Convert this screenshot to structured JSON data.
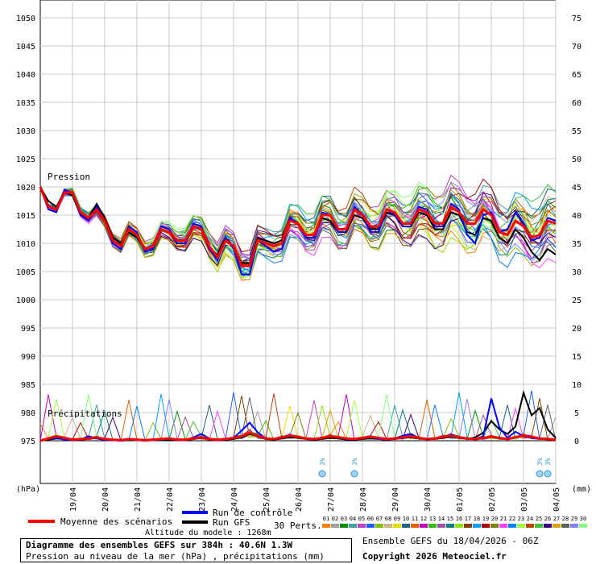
{
  "chart_data": {
    "type": "line",
    "title": "Diagramme des ensembles GEFS sur 384h : 40.6N 1.3W",
    "subtitle": "Pression au niveau de la mer (hPa) , précipitations (mm)",
    "left_axis": {
      "unit": "(hPa)",
      "ticks": [
        975,
        980,
        985,
        990,
        995,
        1000,
        1005,
        1010,
        1015,
        1020,
        1025,
        1030,
        1035,
        1040,
        1045,
        1050
      ]
    },
    "right_axis": {
      "unit": "(mm)",
      "ticks": [
        0,
        5,
        10,
        15,
        20,
        25,
        30,
        35,
        40,
        45,
        50,
        55,
        60,
        65,
        70,
        75
      ]
    },
    "x_ticks": [
      "19/04",
      "20/04",
      "21/04",
      "22/04",
      "23/04",
      "24/04",
      "25/04",
      "26/04",
      "27/04",
      "28/04",
      "29/04",
      "30/04",
      "01/05",
      "02/05",
      "03/05",
      "04/05"
    ],
    "panel_labels": {
      "pressure": "Pression",
      "precip": "Précipitations"
    },
    "grid": true,
    "x_hours": [
      0,
      6,
      12,
      18,
      24,
      30,
      36,
      42,
      48,
      54,
      60,
      66,
      72,
      78,
      84,
      90,
      96,
      102,
      108,
      114,
      120,
      126,
      132,
      138,
      144,
      150,
      156,
      162,
      168,
      174,
      180,
      186,
      192,
      198,
      204,
      210,
      216,
      222,
      228,
      234,
      240,
      246,
      252,
      258,
      264,
      270,
      276,
      282,
      288,
      294,
      300,
      306,
      312,
      318,
      324,
      330,
      336,
      342,
      348,
      354,
      360,
      366,
      372,
      378,
      384
    ],
    "series": [
      {
        "name": "Moyenne des scénarios",
        "color": "#ff0000",
        "pressure": [
          1020,
          1016.5,
          1016,
          1019,
          1019,
          1015.5,
          1014.5,
          1016,
          1014,
          1010.5,
          1009.5,
          1012.5,
          1011.5,
          1009,
          1009.5,
          1012.5,
          1012,
          1010.5,
          1010.5,
          1013,
          1012.5,
          1009.5,
          1007.5,
          1010.5,
          1009.5,
          1006,
          1006,
          1010.5,
          1010,
          1009.5,
          1010,
          1014,
          1013.5,
          1011.5,
          1011.5,
          1015,
          1015,
          1012.5,
          1012.5,
          1016,
          1015,
          1013,
          1013,
          1016,
          1015.5,
          1013.5,
          1013.5,
          1016,
          1015.5,
          1013.5,
          1013.5,
          1016.5,
          1015.5,
          1013.5,
          1013.5,
          1016,
          1015,
          1012,
          1011.5,
          1014,
          1013,
          1011,
          1011.5,
          1014,
          1013.5
        ],
        "precip": [
          0,
          0.4,
          0.8,
          0.5,
          0.2,
          0.3,
          0.4,
          0.6,
          0.3,
          0.2,
          0.1,
          0.3,
          0.2,
          0.1,
          0.2,
          0.3,
          0.4,
          0.2,
          0.2,
          0.4,
          0.6,
          0.3,
          0.2,
          0.3,
          0.5,
          0.8,
          1.4,
          0.9,
          0.4,
          0.3,
          0.6,
          0.9,
          0.7,
          0.4,
          0.3,
          0.5,
          0.8,
          0.6,
          0.4,
          0.3,
          0.5,
          0.7,
          0.5,
          0.3,
          0.4,
          0.6,
          0.8,
          0.5,
          0.3,
          0.4,
          0.7,
          0.9,
          0.6,
          0.4,
          0.3,
          0.5,
          0.7,
          0.5,
          0.3,
          0.6,
          0.9,
          0.7,
          0.4,
          0.3,
          0.2
        ]
      },
      {
        "name": "Run de contrôle",
        "color": "#0000ff",
        "pressure": [
          1020,
          1016,
          1015.5,
          1019.5,
          1019,
          1015,
          1014,
          1016.5,
          1014,
          1010,
          1009,
          1013,
          1012,
          1008.5,
          1009,
          1013,
          1012.5,
          1010,
          1010,
          1013.5,
          1013,
          1009,
          1007,
          1011,
          1009,
          1004.5,
          1004.5,
          1010.5,
          1009.5,
          1008.5,
          1009,
          1014.5,
          1013.5,
          1011,
          1011,
          1015.5,
          1015,
          1012,
          1012,
          1016.5,
          1015,
          1012,
          1012,
          1016,
          1015,
          1013,
          1013,
          1016.5,
          1016,
          1013,
          1013,
          1017,
          1016,
          1011.5,
          1010,
          1015,
          1015.5,
          1012,
          1012.5,
          1015.5,
          1013.5,
          1010.5,
          1011,
          1014.5,
          1014
        ],
        "precip": [
          0,
          0.3,
          0.5,
          0.2,
          0.1,
          0.2,
          0.8,
          0.4,
          0.1,
          0.1,
          0,
          0.2,
          0.1,
          0,
          0.1,
          0.2,
          0.3,
          0.1,
          0.1,
          0.6,
          1.2,
          0.4,
          0.1,
          0.2,
          0.5,
          1.8,
          3.2,
          1.5,
          0.4,
          0.3,
          0.7,
          0.9,
          0.6,
          0.4,
          0.2,
          0.5,
          0.8,
          0.6,
          0.2,
          0.3,
          0.4,
          0.6,
          0.3,
          0.2,
          0.4,
          0.9,
          1.2,
          0.5,
          0.3,
          0.4,
          0.6,
          1.1,
          0.7,
          0.4,
          0.3,
          0.8,
          7.5,
          2.4,
          0.5,
          1.6,
          0.8,
          0.5,
          0.3,
          0.4,
          0.2
        ]
      },
      {
        "name": "Run GFS",
        "color": "#000000",
        "pressure": [
          1020,
          1017.5,
          1016.5,
          1019,
          1018.5,
          1015,
          1014.5,
          1017,
          1014.5,
          1011,
          1010,
          1012,
          1011,
          1009,
          1009.5,
          1012.5,
          1012,
          1010,
          1010,
          1013,
          1012.5,
          1009,
          1008,
          1011,
          1009.5,
          1006.5,
          1006.5,
          1011,
          1010.5,
          1010,
          1010.5,
          1014,
          1013.5,
          1011.5,
          1011.5,
          1014.5,
          1014,
          1012,
          1012,
          1015,
          1014.5,
          1012.5,
          1012.5,
          1015.5,
          1015,
          1013,
          1013,
          1015.5,
          1015,
          1012.5,
          1012.5,
          1015.5,
          1015,
          1012,
          1011.5,
          1014.5,
          1014,
          1011,
          1010,
          1012.5,
          1011,
          1008.5,
          1007,
          1009,
          1008
        ],
        "precip": [
          0,
          0.2,
          0.4,
          0.3,
          0.1,
          0.2,
          0.3,
          0.5,
          0.2,
          0.1,
          0,
          0.1,
          0.1,
          0,
          0.1,
          0.2,
          0.2,
          0.1,
          0.1,
          0.3,
          0.5,
          0.2,
          0.1,
          0.2,
          0.3,
          0.6,
          1.2,
          0.8,
          0.3,
          0.2,
          0.4,
          0.6,
          0.5,
          0.3,
          0.2,
          0.3,
          0.5,
          0.4,
          0.2,
          0.2,
          0.3,
          0.4,
          0.3,
          0.2,
          0.3,
          0.5,
          0.6,
          0.4,
          0.3,
          0.3,
          0.5,
          0.7,
          0.5,
          0.3,
          0.6,
          1.4,
          3.5,
          2.0,
          1.2,
          2.5,
          8.5,
          4.5,
          5.8,
          2.0,
          0.5
        ]
      }
    ],
    "perturbations": {
      "count": 30,
      "colors": [
        "#ff8000",
        "#a0a0a0",
        "#009000",
        "#40a0a0",
        "#c040c0",
        "#2060ff",
        "#80c000",
        "#d0b090",
        "#e0e000",
        "#206080",
        "#e06000",
        "#c000c0",
        "#30c000",
        "#a050a0",
        "#008080",
        "#90e000",
        "#804000",
        "#00a0ff",
        "#b00000",
        "#808000",
        "#ff40ff",
        "#0080ff",
        "#a0ff40",
        "#c04000",
        "#40c040",
        "#400080",
        "#e0a000",
        "#606060",
        "#8080ff",
        "#80ff80"
      ]
    },
    "snow_symbols": [
      {
        "hour": 210,
        "label": "3%"
      },
      {
        "hour": 234,
        "label": "3%"
      },
      {
        "hour": 372,
        "label": "3%"
      },
      {
        "hour": 378,
        "label": "3%"
      }
    ]
  },
  "legend": {
    "mean_label": "Moyenne des scénarios",
    "control_label": "Run de contrôle",
    "gfs_label": "Run GFS",
    "perts_label": "30 Perts.",
    "pert_numbers": [
      "01",
      "02",
      "03",
      "04",
      "05",
      "06",
      "07",
      "08",
      "09",
      "10",
      "11",
      "12",
      "13",
      "14",
      "15",
      "16",
      "17",
      "18",
      "19",
      "20",
      "21",
      "22",
      "23",
      "24",
      "25",
      "26",
      "27",
      "28",
      "29",
      "30"
    ],
    "altitude": "Altitude du modele : 1268m"
  },
  "footer": {
    "title": "Diagramme des ensembles GEFS sur 384h : 40.6N 1.3W",
    "subtitle": "Pression au niveau de la mer (hPa) , précipitations (mm)",
    "run_info": "Ensemble GEFS du 18/04/2026 - 06Z",
    "copyright": "Copyright 2026 Meteociel.fr"
  }
}
